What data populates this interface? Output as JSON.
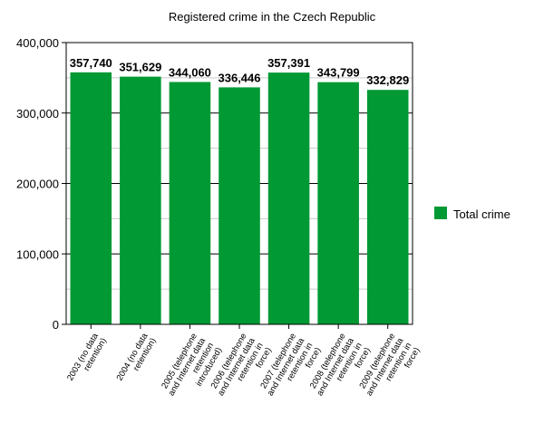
{
  "chart_data": {
    "type": "bar",
    "title": "Registered crime in the Czech Republic",
    "xlabel": "",
    "ylabel": "",
    "ylim": [
      0,
      400000
    ],
    "yticks": [
      0,
      100000,
      200000,
      300000,
      400000
    ],
    "ytick_labels": [
      "0",
      "100,000",
      "200,000",
      "300,000",
      "400,000"
    ],
    "grid": true,
    "legend_position": "right",
    "categories": [
      [
        "2003 (no data",
        "retention)"
      ],
      [
        "2004 (no data",
        "retention)"
      ],
      [
        "2005 (telephone",
        "and Internet data",
        "retention",
        "introduced)"
      ],
      [
        "2006 (telephone",
        "and Internet data",
        "retention in",
        "force)"
      ],
      [
        "2007 (telephone",
        "and Internet data",
        "retention in",
        "force)"
      ],
      [
        "2008 (telephone",
        "and Internet data",
        "retention in",
        "force)"
      ],
      [
        "2009 (telephone",
        "and Internet data",
        "retention in",
        "force)"
      ]
    ],
    "series": [
      {
        "name": "Total crime",
        "color": "#009933",
        "values": [
          357740,
          351629,
          344060,
          336446,
          357391,
          343799,
          332829
        ],
        "value_labels": [
          "357,740",
          "351,629",
          "344,060",
          "336,446",
          "357,391",
          "343,799",
          "332,829"
        ]
      }
    ]
  }
}
